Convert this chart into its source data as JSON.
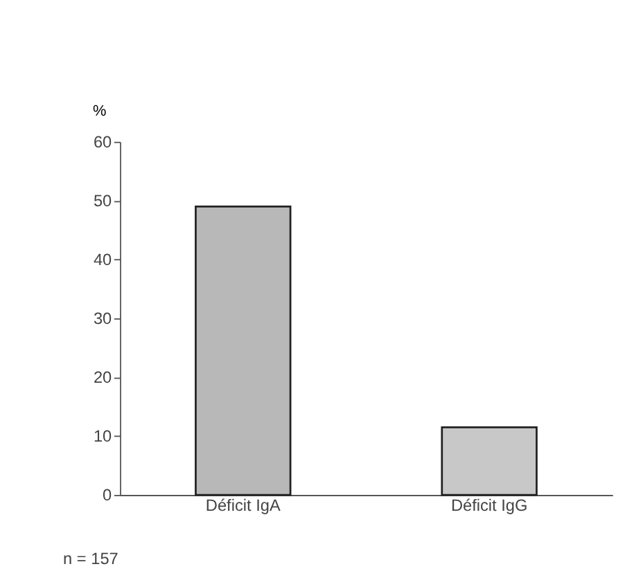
{
  "chart_data": {
    "type": "bar",
    "ylabel": "%",
    "categories": [
      "Déficit IgA",
      "Déficit IgG"
    ],
    "values": [
      49,
      11.5
    ],
    "colors": [
      "#b8b8b8",
      "#c8c8c8"
    ],
    "ylim": [
      0,
      60
    ],
    "yticks": [
      0,
      10,
      20,
      30,
      40,
      50,
      60
    ],
    "grid": false,
    "annotations": [
      "n = 157"
    ]
  }
}
